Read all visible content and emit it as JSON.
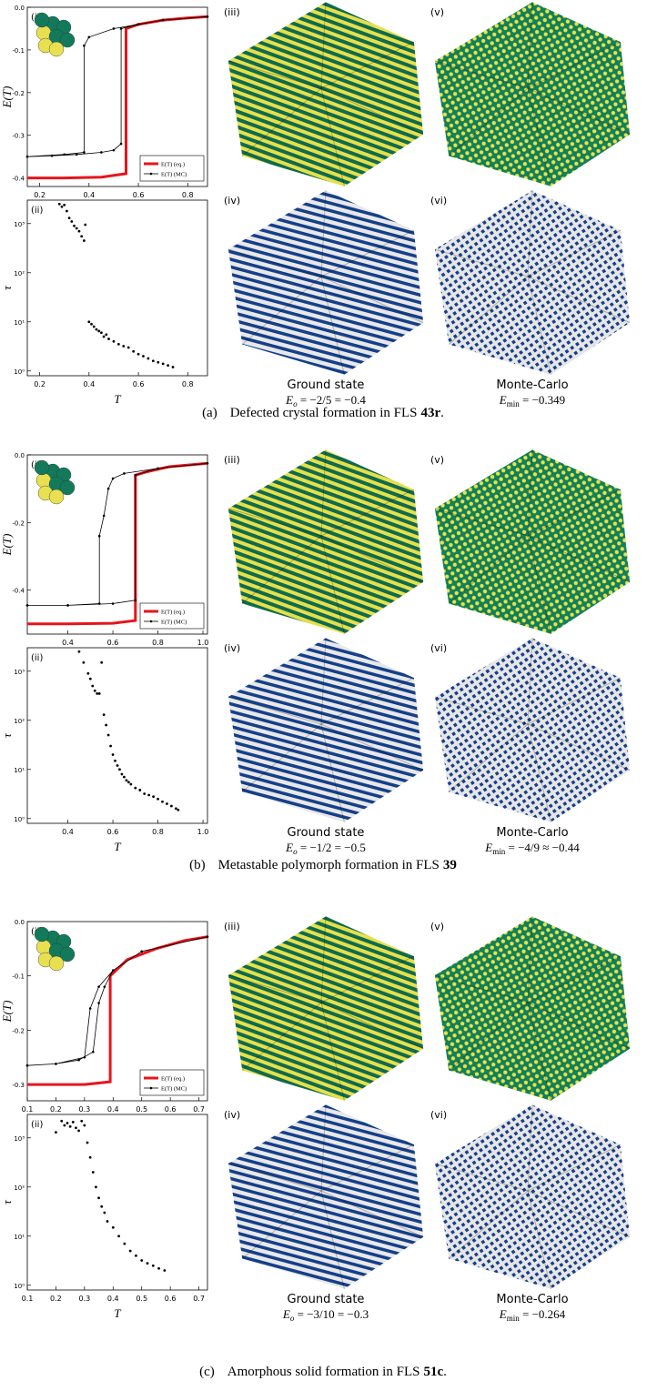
{
  "chart_data": [
    {
      "type": "line",
      "panel_label": "(i)",
      "y_label": "E(T)",
      "xlim": [
        0.15,
        0.88
      ],
      "ylim": [
        -0.42,
        0.0
      ],
      "xticks": [
        0.2,
        0.4,
        0.6,
        0.8
      ],
      "yticks": [
        {
          "value": 0,
          "label": "0.0"
        },
        -0.1,
        -0.2,
        -0.3,
        -0.4
      ],
      "legend": "lower right",
      "series": [
        {
          "name": "E(T) (eq.)",
          "color": "#e8141b",
          "x": [
            0.15,
            0.3,
            0.45,
            0.55,
            0.55,
            0.6,
            0.7,
            0.8,
            0.88
          ],
          "values": [
            -0.4,
            -0.4,
            -0.398,
            -0.39,
            -0.05,
            -0.04,
            -0.03,
            -0.025,
            -0.022
          ]
        },
        {
          "name": "E(T) (MC)",
          "color": "#000000",
          "markers": true,
          "x": [
            0.15,
            0.25,
            0.35,
            0.45,
            0.5,
            0.53,
            0.53,
            0.6,
            0.7,
            0.88,
            0.7,
            0.6,
            0.5,
            0.4,
            0.38,
            0.38,
            0.3,
            0.15
          ],
          "values": [
            -0.35,
            -0.348,
            -0.345,
            -0.34,
            -0.335,
            -0.32,
            -0.05,
            -0.04,
            -0.03,
            -0.022,
            -0.03,
            -0.04,
            -0.05,
            -0.07,
            -0.09,
            -0.34,
            -0.345,
            -0.35
          ]
        }
      ]
    },
    {
      "type": "scatter",
      "panel_label": "(ii)",
      "x_label": "T",
      "y_label": "τ",
      "log_y": true,
      "color": "#000000",
      "xlim": [
        0.15,
        0.88
      ],
      "ylim": [
        0.8,
        3000
      ],
      "xticks": [
        0.2,
        0.4,
        0.6,
        0.8
      ],
      "yticks": [
        {
          "value": 1,
          "label": "10⁰"
        },
        {
          "value": 10,
          "label": "10¹"
        },
        {
          "value": 100,
          "label": "10²"
        },
        {
          "value": 1000,
          "label": "10³"
        }
      ],
      "x": [
        0.28,
        0.29,
        0.3,
        0.31,
        0.32,
        0.33,
        0.34,
        0.35,
        0.36,
        0.37,
        0.38,
        0.385,
        0.4,
        0.41,
        0.42,
        0.43,
        0.44,
        0.45,
        0.46,
        0.47,
        0.48,
        0.5,
        0.52,
        0.54,
        0.56,
        0.58,
        0.6,
        0.62,
        0.64,
        0.66,
        0.68,
        0.7,
        0.72,
        0.74
      ],
      "values": [
        2500,
        2200,
        2400,
        1800,
        1300,
        1100,
        900,
        800,
        700,
        550,
        450,
        950,
        10,
        9,
        8,
        7,
        6.5,
        6,
        5,
        5.5,
        4.5,
        4,
        3.5,
        3.2,
        3,
        2.5,
        2.2,
        2,
        1.8,
        1.6,
        1.5,
        1.4,
        1.3,
        1.2
      ]
    },
    {
      "type": "line",
      "panel_label": "(i)",
      "y_label": "E(T)",
      "xlim": [
        0.22,
        1.02
      ],
      "ylim": [
        -0.53,
        0.0
      ],
      "xticks": [
        0.4,
        0.6,
        0.8,
        {
          "value": 1,
          "label": "1.0"
        }
      ],
      "yticks": [
        {
          "value": 0,
          "label": "0.0"
        },
        -0.2,
        -0.4
      ],
      "legend": "lower right",
      "series": [
        {
          "name": "E(T) (eq.)",
          "color": "#e8141b",
          "x": [
            0.22,
            0.4,
            0.6,
            0.7,
            0.7,
            0.75,
            0.85,
            1.02
          ],
          "values": [
            -0.5,
            -0.5,
            -0.498,
            -0.49,
            -0.06,
            -0.05,
            -0.035,
            -0.025
          ]
        },
        {
          "name": "E(T) (MC)",
          "color": "#000000",
          "markers": true,
          "x": [
            0.22,
            0.4,
            0.6,
            0.7,
            0.7,
            0.8,
            1.02,
            0.8,
            0.65,
            0.6,
            0.58,
            0.56,
            0.54,
            0.54,
            0.4,
            0.22
          ],
          "values": [
            -0.445,
            -0.445,
            -0.44,
            -0.43,
            -0.06,
            -0.04,
            -0.025,
            -0.04,
            -0.055,
            -0.07,
            -0.1,
            -0.18,
            -0.24,
            -0.44,
            -0.445,
            -0.445
          ]
        }
      ]
    },
    {
      "type": "scatter",
      "panel_label": "(ii)",
      "x_label": "T",
      "y_label": "τ",
      "log_y": true,
      "color": "#000000",
      "xlim": [
        0.22,
        1.02
      ],
      "ylim": [
        0.8,
        3000
      ],
      "xticks": [
        0.4,
        0.6,
        0.8,
        {
          "value": 1,
          "label": "1.0"
        }
      ],
      "yticks": [
        {
          "value": 1,
          "label": "10⁰"
        },
        {
          "value": 10,
          "label": "10¹"
        },
        {
          "value": 100,
          "label": "10²"
        },
        {
          "value": 1000,
          "label": "10³"
        }
      ],
      "x": [
        0.45,
        0.47,
        0.49,
        0.5,
        0.51,
        0.52,
        0.53,
        0.54,
        0.55,
        0.56,
        0.57,
        0.58,
        0.59,
        0.6,
        0.61,
        0.62,
        0.63,
        0.64,
        0.65,
        0.66,
        0.67,
        0.68,
        0.7,
        0.72,
        0.74,
        0.76,
        0.78,
        0.8,
        0.82,
        0.84,
        0.86,
        0.88,
        0.89
      ],
      "values": [
        2500,
        1500,
        900,
        700,
        500,
        400,
        350,
        350,
        1500,
        130,
        80,
        50,
        30,
        20,
        15,
        12,
        10,
        8,
        7,
        6,
        5.5,
        5,
        4.2,
        3.8,
        3.2,
        3,
        2.8,
        2.5,
        2.2,
        2,
        1.8,
        1.6,
        1.5
      ]
    },
    {
      "type": "line",
      "panel_label": "(i)",
      "y_label": "E(T)",
      "xlim": [
        0.1,
        0.73
      ],
      "ylim": [
        -0.33,
        0.0
      ],
      "xticks": [
        0.1,
        0.2,
        0.3,
        0.4,
        0.5,
        0.6,
        0.7
      ],
      "yticks": [
        {
          "value": 0,
          "label": "0.0"
        },
        -0.1,
        -0.2,
        -0.3
      ],
      "legend": "lower right",
      "series": [
        {
          "name": "E(T) (eq.)",
          "color": "#e8141b",
          "x": [
            0.1,
            0.3,
            0.39,
            0.39,
            0.45,
            0.55,
            0.65,
            0.73
          ],
          "values": [
            -0.3,
            -0.3,
            -0.295,
            -0.1,
            -0.07,
            -0.05,
            -0.035,
            -0.028
          ]
        },
        {
          "name": "E(T) (MC)",
          "color": "#000000",
          "markers": true,
          "x": [
            0.1,
            0.2,
            0.28,
            0.33,
            0.35,
            0.37,
            0.4,
            0.5,
            0.73,
            0.5,
            0.4,
            0.35,
            0.32,
            0.3,
            0.2,
            0.1
          ],
          "values": [
            -0.265,
            -0.262,
            -0.255,
            -0.24,
            -0.15,
            -0.12,
            -0.09,
            -0.055,
            -0.028,
            -0.055,
            -0.09,
            -0.12,
            -0.16,
            -0.25,
            -0.262,
            -0.265
          ]
        }
      ]
    },
    {
      "type": "scatter",
      "panel_label": "(ii)",
      "x_label": "T",
      "y_label": "τ",
      "log_y": true,
      "color": "#000000",
      "xlim": [
        0.1,
        0.73
      ],
      "ylim": [
        0.8,
        3000
      ],
      "xticks": [
        0.1,
        0.2,
        0.3,
        0.4,
        0.5,
        0.6,
        0.7
      ],
      "yticks": [
        {
          "value": 1,
          "label": "10⁰"
        },
        {
          "value": 10,
          "label": "10¹"
        },
        {
          "value": 100,
          "label": "10²"
        },
        {
          "value": 1000,
          "label": "10³"
        }
      ],
      "x": [
        0.2,
        0.22,
        0.23,
        0.24,
        0.25,
        0.26,
        0.27,
        0.28,
        0.29,
        0.3,
        0.31,
        0.32,
        0.33,
        0.34,
        0.35,
        0.36,
        0.37,
        0.38,
        0.4,
        0.42,
        0.44,
        0.46,
        0.48,
        0.5,
        0.52,
        0.54,
        0.56,
        0.58
      ],
      "values": [
        1300,
        2200,
        1800,
        2000,
        1700,
        2100,
        1600,
        1400,
        2200,
        1800,
        800,
        400,
        200,
        100,
        60,
        40,
        30,
        20,
        15,
        10,
        7,
        5,
        4,
        3.2,
        2.8,
        2.5,
        2.2,
        2.0
      ]
    }
  ],
  "panels": [
    {
      "image_labels": [
        "(iii)",
        "(v)",
        "(iv)",
        "(vi)"
      ],
      "ground_state": {
        "title": "Ground state",
        "symbol": "E",
        "subscript": "o",
        "expression": " = −2/5 = −0.4"
      },
      "monte_carlo": {
        "title": "Monte-Carlo",
        "symbol": "E",
        "subscript": "min",
        "expression": " = −0.349"
      },
      "caption": {
        "label": "(a)",
        "text": "Defected crystal formation in FLS",
        "bold": "43r",
        "end": "."
      }
    },
    {
      "image_labels": [
        "(iii)",
        "(v)",
        "(iv)",
        "(vi)"
      ],
      "ground_state": {
        "title": "Ground state",
        "symbol": "E",
        "subscript": "o",
        "expression": " = −1/2 = −0.5"
      },
      "monte_carlo": {
        "title": "Monte-Carlo",
        "symbol": "E",
        "subscript": "min",
        "expression": " = −4/9 ≈ −0.44"
      },
      "caption": {
        "label": "(b)",
        "text": "Metastable polymorph formation in FLS",
        "bold": "39"
      }
    },
    {
      "image_labels": [
        "(iii)",
        "(v)",
        "(iv)",
        "(vi)"
      ],
      "ground_state": {
        "title": "Ground state",
        "symbol": "E",
        "subscript": "o",
        "expression": " = −3/10 = −0.3"
      },
      "monte_carlo": {
        "title": "Monte-Carlo",
        "symbol": "E",
        "subscript": "min",
        "expression": " = −0.264"
      },
      "caption": {
        "label": "(c)",
        "text": "Amorphous solid formation in FLS",
        "bold": "51c",
        "end": "."
      }
    }
  ]
}
